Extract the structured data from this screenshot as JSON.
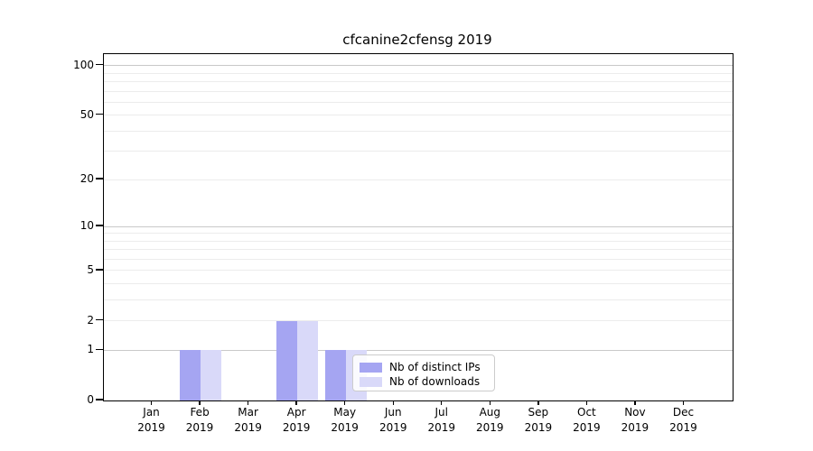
{
  "chart_data": {
    "type": "bar",
    "title": "cfcanine2cfensg 2019",
    "x_tick_labels": [
      "Jan\n2019",
      "Feb\n2019",
      "Mar\n2019",
      "Apr\n2019",
      "May\n2019",
      "Jun\n2019",
      "Jul\n2019",
      "Aug\n2019",
      "Sep\n2019",
      "Oct\n2019",
      "Nov\n2019",
      "Dec\n2019"
    ],
    "series": [
      {
        "name": "Nb of distinct IPs",
        "color": "#a5a5f2",
        "values": [
          0,
          1,
          0,
          2,
          1,
          0,
          0,
          0,
          0,
          0,
          0,
          0
        ]
      },
      {
        "name": "Nb of downloads",
        "color": "#d9d9f9",
        "values": [
          0,
          1,
          0,
          2,
          1,
          0,
          0,
          0,
          0,
          0,
          0,
          0
        ]
      }
    ],
    "y_axis": {
      "scale": "log1p",
      "tick_values": [
        0,
        1,
        2,
        5,
        10,
        20,
        50,
        100
      ],
      "tick_labels": [
        "0",
        "1",
        "2",
        "5",
        "10",
        "20",
        "50",
        "100"
      ],
      "minor_gridlines": [
        3,
        4,
        6,
        7,
        8,
        9,
        30,
        40,
        60,
        70,
        80,
        90
      ],
      "emphasized_gridlines": [
        1,
        10,
        100
      ],
      "ylim": [
        0,
        115
      ]
    },
    "legend": {
      "entries": [
        "Nb of distinct IPs",
        "Nb of downloads"
      ],
      "position": "lower center"
    },
    "grid": true
  }
}
